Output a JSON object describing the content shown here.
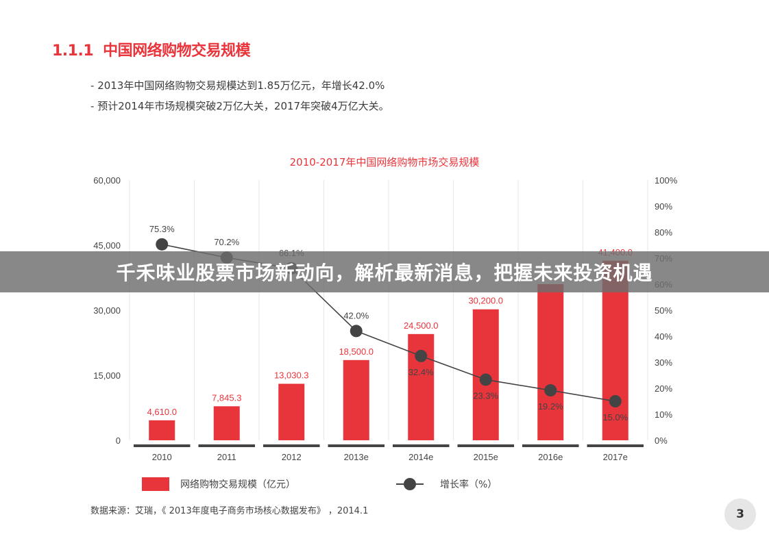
{
  "section": {
    "number": "1.1.1",
    "title": "中国网络购物交易规模"
  },
  "bullets": [
    "2013年中国网络购物交易规模达到1.85万亿元，年增长42.0%",
    "预计2014年市场规模突破2万亿大关，2017年突破4万亿大关。"
  ],
  "banner": {
    "text": "千禾味业股票市场新动向，解析最新消息，把握未来投资机遇"
  },
  "legend": {
    "bar_label": "网络购物交易规模（亿元）",
    "line_label": "增长率（%）"
  },
  "source": "数据来源：艾瑞，《 2013年度电子商务市场核心数据发布》 ，2014.1",
  "page_number": "3",
  "colors": {
    "bar": "#e8343b",
    "line": "#444444",
    "title": "#e8343b"
  },
  "chart_data": {
    "type": "bar",
    "title": "2010-2017年中国网络购物市场交易规模",
    "categories": [
      "2010",
      "2011",
      "2012",
      "2013e",
      "2014e",
      "2015e",
      "2016e",
      "2017e"
    ],
    "series": [
      {
        "name": "网络购物交易规模（亿元）",
        "type": "bar",
        "axis": "left",
        "values": [
          4610.0,
          7845.3,
          13030.3,
          18500.0,
          24500.0,
          30200.0,
          36000.0,
          41400.0
        ],
        "labels": [
          "4,610.0",
          "7,845.3",
          "13,030.3",
          "18,500.0",
          "24,500.0",
          "30,200.0",
          "",
          "41,400.0"
        ]
      },
      {
        "name": "增长率（%）",
        "type": "line",
        "axis": "right",
        "values": [
          75.3,
          70.2,
          66.1,
          42.0,
          32.4,
          23.3,
          19.2,
          15.0
        ],
        "labels": [
          "75.3%",
          "70.2%",
          "66.1%",
          "42.0%",
          "32.4%",
          "23.3%",
          "19.2%",
          "15.0%"
        ]
      }
    ],
    "y_left": {
      "ylim": [
        0,
        60000
      ],
      "ticks": [
        "0",
        "15,000",
        "30,000",
        "45,000",
        "60,000"
      ]
    },
    "y_right": {
      "ylim": [
        0,
        100
      ],
      "ticks": [
        "0%",
        "10%",
        "20%",
        "30%",
        "40%",
        "50%",
        "60%",
        "70%",
        "80%",
        "90%",
        "100%"
      ]
    },
    "grid": "vertical",
    "legend": "bottom"
  }
}
